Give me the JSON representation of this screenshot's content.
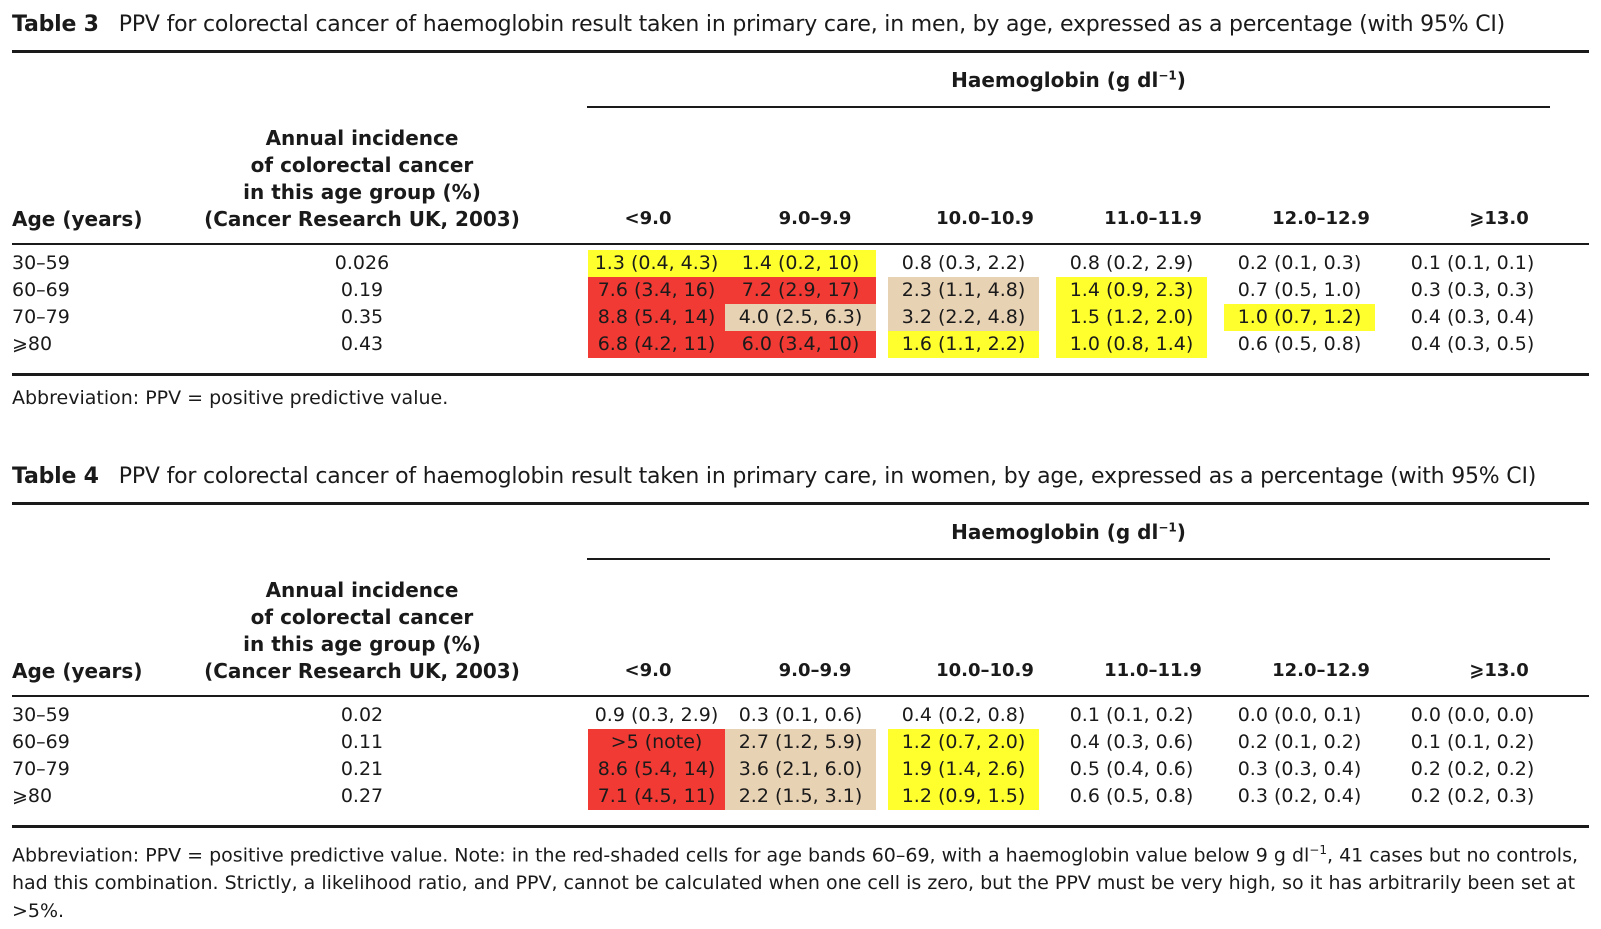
{
  "table3": {
    "label": "Table 3",
    "title": "PPV for colorectal cancer of haemoglobin result taken in primary care, in men, by age, expressed as a percentage (with 95% CI)",
    "group_header": "Haemoglobin (g dl",
    "group_header_sup": "−1",
    "group_header_close": ")",
    "age_header": "Age (years)",
    "incidence_header": [
      "Annual incidence",
      "of colorectal cancer",
      "in this age group (%)",
      "(Cancer Research UK, 2003)"
    ],
    "columns": [
      "<9.0",
      "9.0–9.9",
      "10.0–10.9",
      "11.0–11.9",
      "12.0–12.9",
      "⩾13.0"
    ],
    "rows": [
      {
        "age": "30–59",
        "incidence": "0.026",
        "values": [
          "1.3 (0.4, 4.3)",
          "1.4 (0.2, 10)",
          "0.8 (0.3, 2.2)",
          "0.8 (0.2, 2.9)",
          "0.2 (0.1, 0.3)",
          "0.1 (0.1, 0.1)"
        ],
        "shading": [
          "yellow",
          "yellow",
          "",
          "",
          "",
          ""
        ]
      },
      {
        "age": "60–69",
        "incidence": "0.19",
        "values": [
          "7.6 (3.4, 16)",
          "7.2 (2.9, 17)",
          "2.3 (1.1, 4.8)",
          "1.4 (0.9, 2.3)",
          "0.7 (0.5, 1.0)",
          "0.3 (0.3, 0.3)"
        ],
        "shading": [
          "red",
          "red",
          "tan",
          "yellow",
          "",
          ""
        ]
      },
      {
        "age": "70–79",
        "incidence": "0.35",
        "values": [
          "8.8 (5.4, 14)",
          "4.0 (2.5, 6.3)",
          "3.2 (2.2, 4.8)",
          "1.5 (1.2, 2.0)",
          "1.0 (0.7, 1.2)",
          "0.4 (0.3, 0.4)"
        ],
        "shading": [
          "red",
          "tan",
          "tan",
          "yellow",
          "yellow",
          ""
        ]
      },
      {
        "age": "⩾80",
        "incidence": "0.43",
        "values": [
          "6.8 (4.2, 11)",
          "6.0 (3.4, 10)",
          "1.6 (1.1, 2.2)",
          "1.0 (0.8, 1.4)",
          "0.6 (0.5, 0.8)",
          "0.4 (0.3, 0.5)"
        ],
        "shading": [
          "red",
          "red",
          "yellow",
          "yellow",
          "",
          ""
        ]
      }
    ],
    "abbreviation": "Abbreviation: PPV = positive predictive value."
  },
  "table4": {
    "label": "Table 4",
    "title": "PPV for colorectal cancer of haemoglobin result taken in primary care, in women, by age, expressed as a percentage (with 95% CI)",
    "group_header": "Haemoglobin (g dl",
    "group_header_sup": "−1",
    "group_header_close": ")",
    "age_header": "Age (years)",
    "incidence_header": [
      "Annual incidence",
      "of colorectal cancer",
      "in this age group (%)",
      "(Cancer Research UK, 2003)"
    ],
    "columns": [
      "<9.0",
      "9.0–9.9",
      "10.0–10.9",
      "11.0–11.9",
      "12.0–12.9",
      "⩾13.0"
    ],
    "rows": [
      {
        "age": "30–59",
        "incidence": "0.02",
        "values": [
          "0.9 (0.3, 2.9)",
          "0.3 (0.1, 0.6)",
          "0.4 (0.2, 0.8)",
          "0.1 (0.1, 0.2)",
          "0.0 (0.0, 0.1)",
          "0.0 (0.0, 0.0)"
        ],
        "shading": [
          "",
          "",
          "",
          "",
          "",
          ""
        ]
      },
      {
        "age": "60–69",
        "incidence": "0.11",
        "values": [
          ">5 (note)",
          "2.7 (1.2, 5.9)",
          "1.2 (0.7, 2.0)",
          "0.4 (0.3, 0.6)",
          "0.2 (0.1, 0.2)",
          "0.1 (0.1, 0.2)"
        ],
        "shading": [
          "red",
          "tan",
          "yellow",
          "",
          "",
          ""
        ]
      },
      {
        "age": "70–79",
        "incidence": "0.21",
        "values": [
          "8.6 (5.4, 14)",
          "3.6 (2.1, 6.0)",
          "1.9 (1.4, 2.6)",
          "0.5 (0.4, 0.6)",
          "0.3 (0.3, 0.4)",
          "0.2 (0.2, 0.2)"
        ],
        "shading": [
          "red",
          "tan",
          "yellow",
          "",
          "",
          ""
        ]
      },
      {
        "age": "⩾80",
        "incidence": "0.27",
        "values": [
          "7.1 (4.5, 11)",
          "2.2 (1.5, 3.1)",
          "1.2 (0.9, 1.5)",
          "0.6 (0.5, 0.8)",
          "0.3 (0.2, 0.4)",
          "0.2 (0.2, 0.3)"
        ],
        "shading": [
          "red",
          "tan",
          "yellow",
          "",
          "",
          ""
        ]
      }
    ],
    "abbreviation_part1": "Abbreviation: PPV = positive predictive value. Note: in the red-shaded cells for age bands 60–69, with a haemoglobin value below 9 g dl",
    "abbreviation_sup": "−1",
    "abbreviation_part2": ", 41 cases but no controls, had this combination. Strictly, a likelihood ratio, and PPV, cannot be calculated when one cell is zero, but the PPV must be very high, so it has arbitrarily been set at >5%."
  },
  "colors": {
    "red": "#f23a35",
    "tan": "#e8d2b4",
    "yellow": "#ffff2e"
  }
}
